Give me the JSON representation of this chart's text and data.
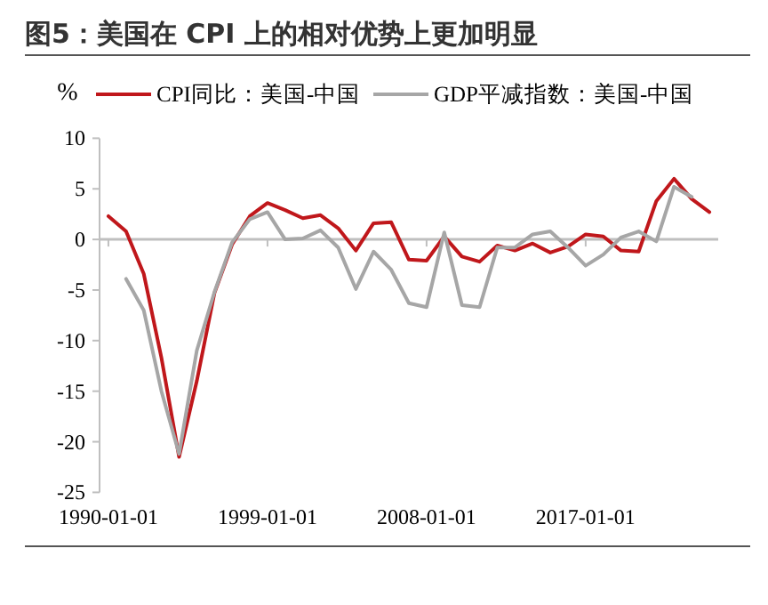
{
  "chart_data": {
    "type": "line",
    "title": "图5：美国在 CPI 上的相对优势上更加明显",
    "ylabel": "%",
    "categories": [
      "1990-01-01",
      null,
      null,
      null,
      null,
      null,
      null,
      null,
      null,
      "1999-01-01",
      null,
      null,
      null,
      null,
      null,
      null,
      null,
      null,
      "2008-01-01",
      null,
      null,
      null,
      null,
      null,
      null,
      null,
      null,
      "2017-01-01",
      null,
      null,
      null,
      null,
      null,
      null,
      null
    ],
    "series": [
      {
        "name": "CPI同比：美国-中国",
        "color": "#c0171b",
        "values": [
          2.3,
          0.8,
          -3.4,
          -11.7,
          -21.5,
          -14,
          -5.3,
          -0.5,
          2.3,
          3.6,
          2.9,
          2.1,
          2.4,
          1.1,
          -1.1,
          1.6,
          1.7,
          -2.0,
          -2.1,
          0.3,
          -1.7,
          -2.2,
          -0.6,
          -1.1,
          -0.4,
          -1.3,
          -0.7,
          0.5,
          0.3,
          -1.1,
          -1.2,
          3.8,
          6.0,
          4.0,
          2.7
        ]
      },
      {
        "name": "GDP平减指数：美国-中国",
        "color": "#a6a6a6",
        "values": [
          null,
          -3.9,
          -7.0,
          -15,
          -21.2,
          -11,
          -5.2,
          -0.3,
          2.0,
          2.7,
          0,
          0.1,
          0.9,
          -0.8,
          -4.9,
          -1.2,
          -3.0,
          -6.3,
          -6.7,
          0.7,
          -6.5,
          -6.7,
          -0.8,
          -0.8,
          0.5,
          0.8,
          -0.8,
          -2.6,
          -1.5,
          0.2,
          0.8,
          -0.2,
          5.2,
          4.2,
          null
        ]
      }
    ],
    "ylim": [
      -25,
      10
    ],
    "yticks": [
      -25,
      -20,
      -15,
      -10,
      -5,
      0,
      5,
      10
    ],
    "legend": "top"
  }
}
